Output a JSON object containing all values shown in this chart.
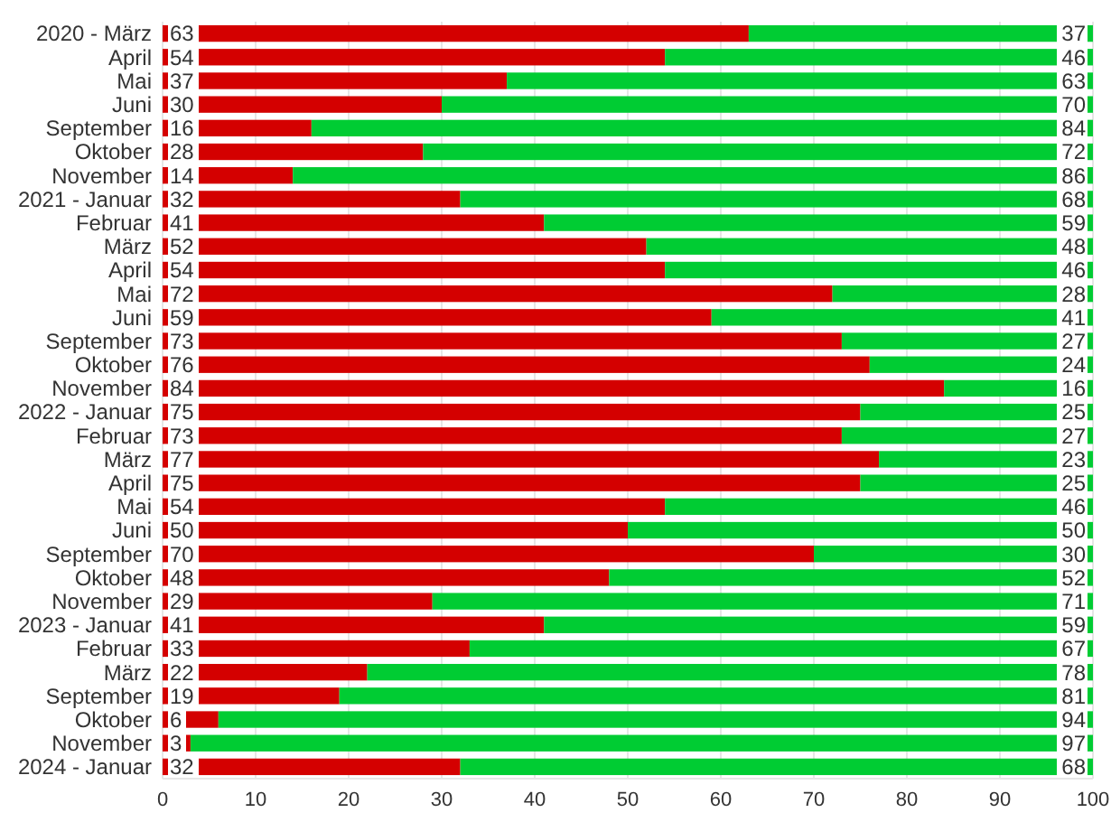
{
  "chart_data": {
    "type": "bar",
    "orientation": "horizontal",
    "stacked": true,
    "data_labels": true,
    "grid": "x",
    "categories": [
      "2020 - März",
      "April",
      "Mai",
      "Juni",
      "September",
      "Oktober",
      "November",
      "2021 - Januar",
      "Februar",
      "März",
      "April",
      "Mai",
      "Juni",
      "September",
      "Oktober",
      "November",
      "2022 - Januar",
      "Februar",
      "März",
      "April",
      "Mai",
      "Juni",
      "September",
      "Oktober",
      "November",
      "2023 - Januar",
      "Februar",
      "März",
      "September",
      "Oktober",
      "November",
      "2024 - Januar"
    ],
    "series": [
      {
        "color": "#d40000",
        "values": [
          63,
          54,
          37,
          30,
          16,
          28,
          14,
          32,
          41,
          52,
          54,
          72,
          59,
          73,
          76,
          84,
          75,
          73,
          77,
          75,
          54,
          50,
          70,
          48,
          29,
          41,
          33,
          22,
          19,
          6,
          3,
          32
        ]
      },
      {
        "color": "#00cc33",
        "values": [
          37,
          46,
          63,
          70,
          84,
          72,
          86,
          68,
          59,
          48,
          46,
          28,
          41,
          27,
          24,
          16,
          25,
          27,
          23,
          25,
          46,
          50,
          30,
          52,
          71,
          59,
          67,
          78,
          81,
          94,
          97,
          68
        ]
      }
    ],
    "xlim": [
      0,
      100
    ],
    "xticks": [
      0,
      10,
      20,
      30,
      40,
      50,
      60,
      70,
      80,
      90,
      100
    ]
  }
}
